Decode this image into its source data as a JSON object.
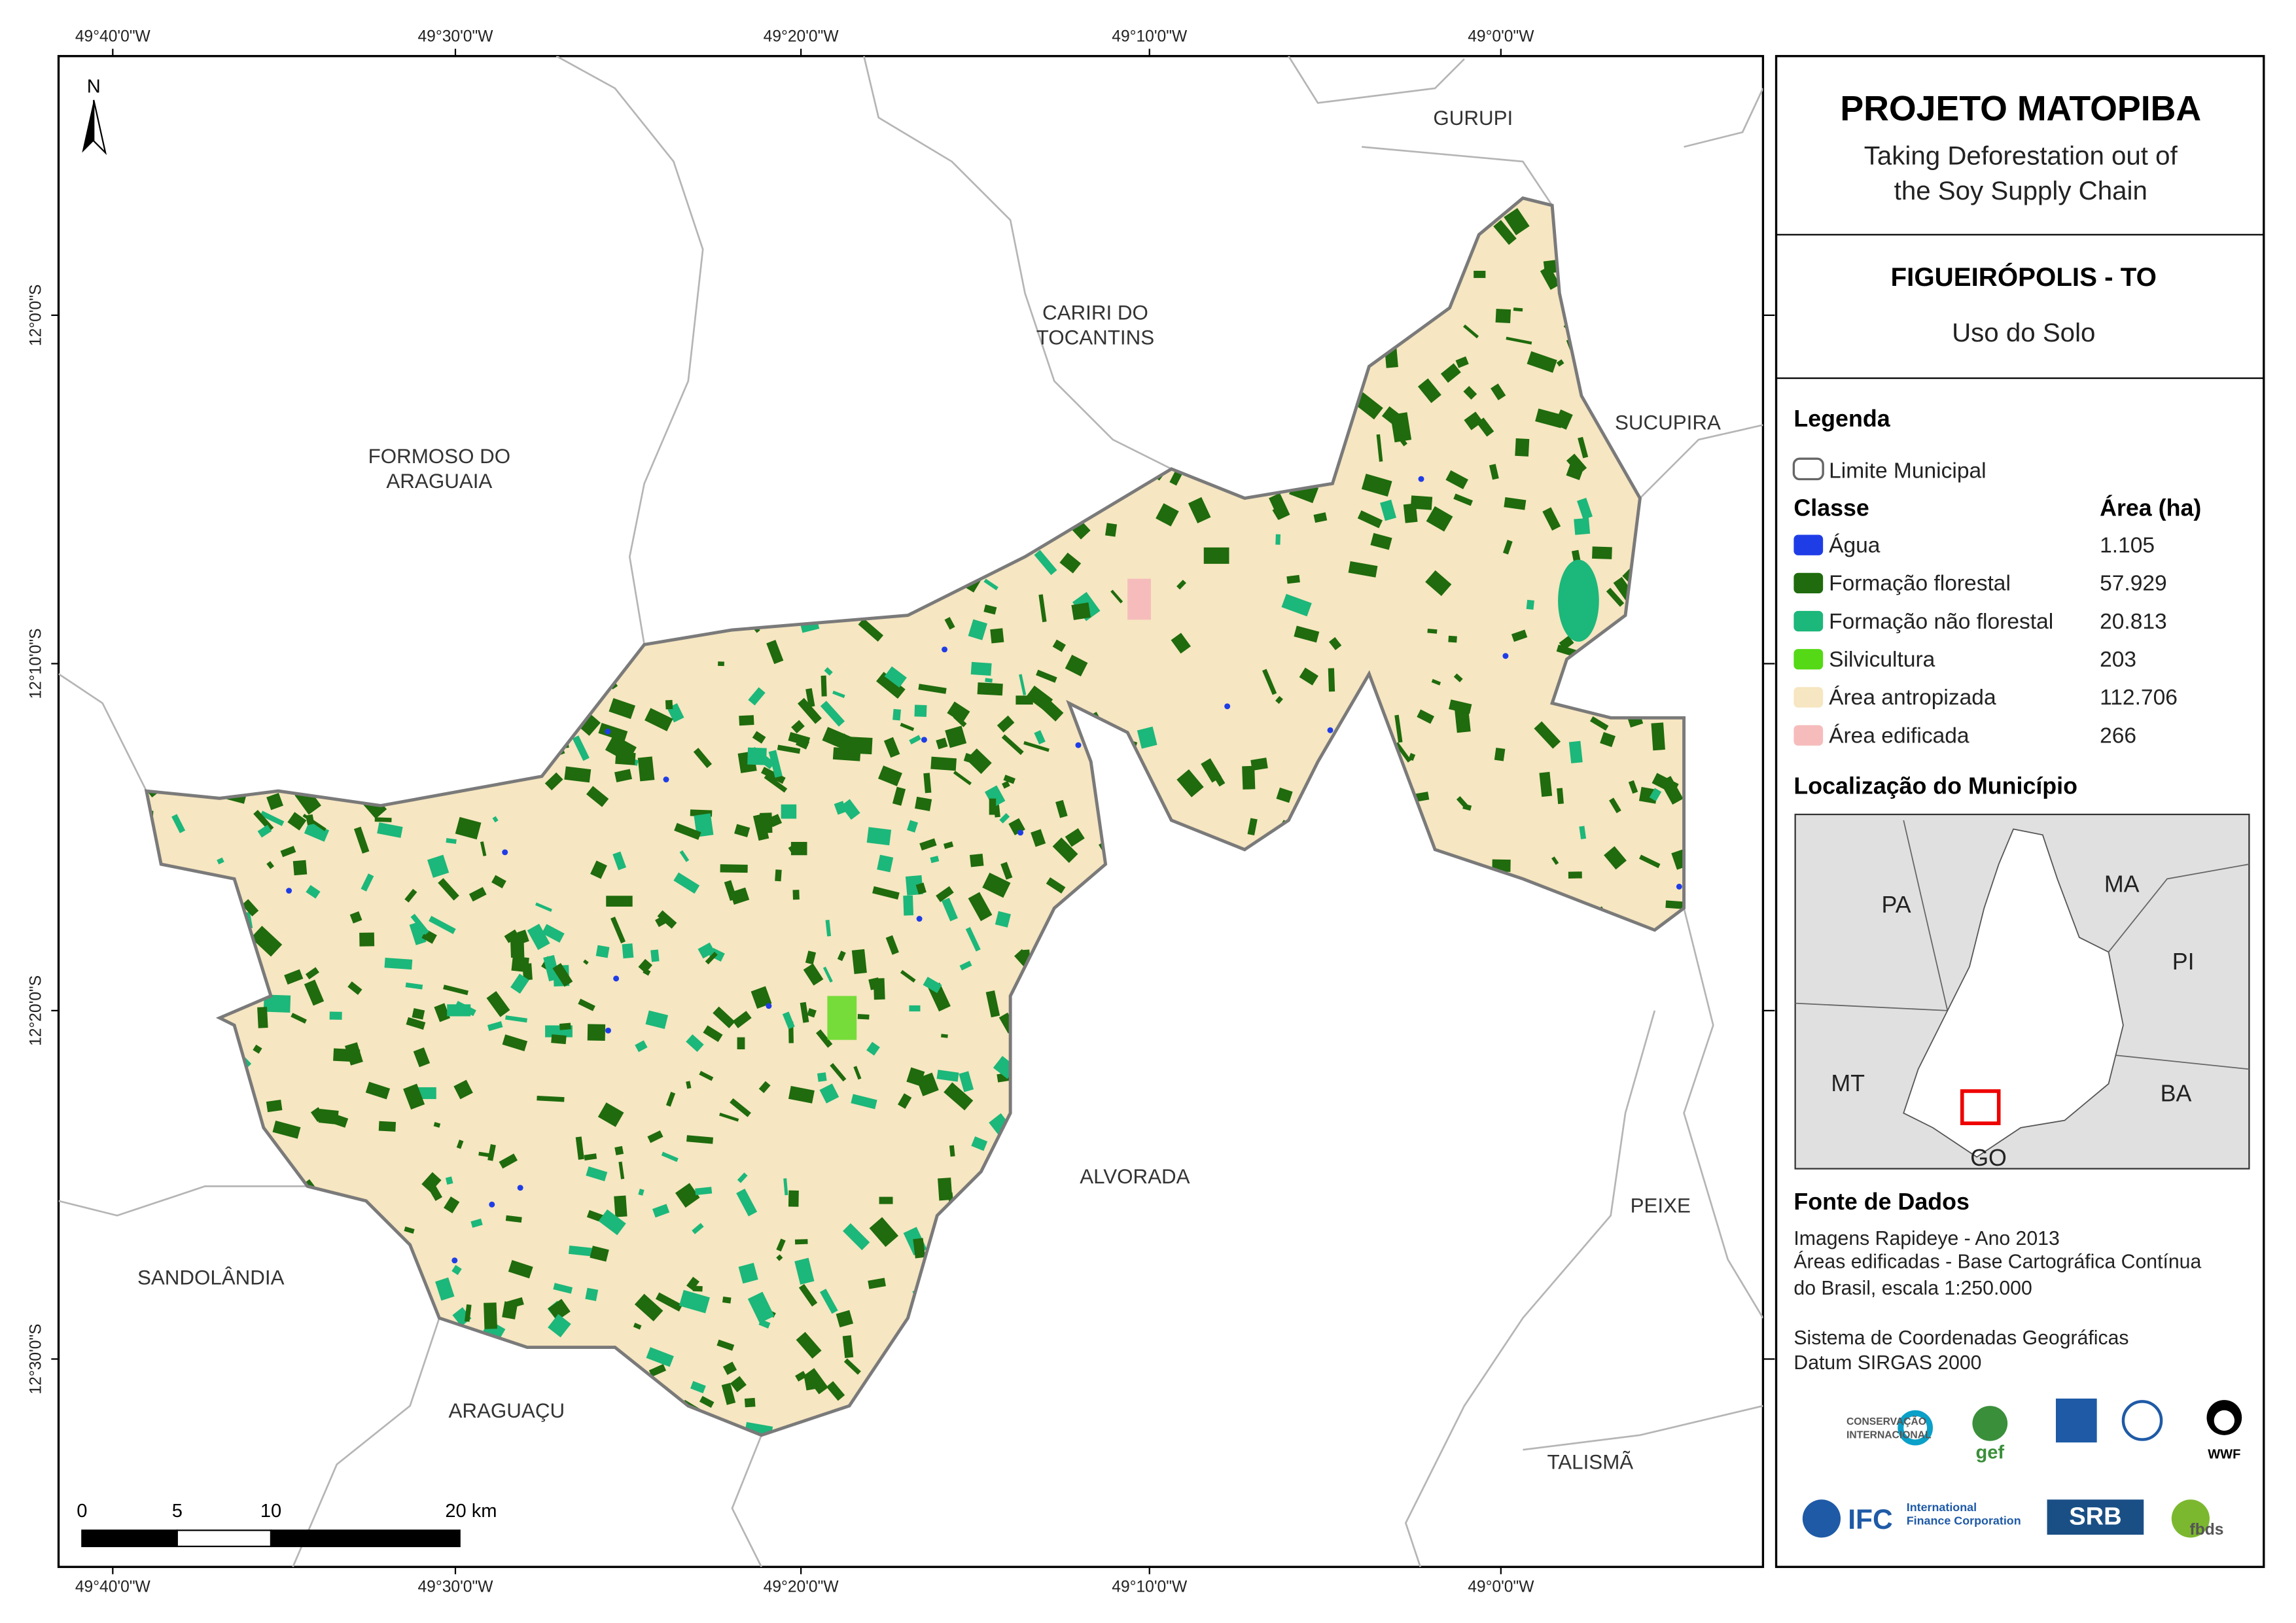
{
  "header": {
    "title": "PROJETO MATOPIBA",
    "subtitle_lines": [
      "Taking Deforestation out of",
      "the Soy Supply Chain"
    ]
  },
  "map_info": {
    "municipality": "FIGUEIRÓPOLIS - TO",
    "theme": "Uso do Solo"
  },
  "legend": {
    "title": "Legenda",
    "boundary": "Limite Municipal",
    "class_header": "Classe",
    "area_header": "Área (ha)",
    "classes": [
      {
        "name": "Água",
        "area": "1.105",
        "color": "#1f3de6"
      },
      {
        "name": "Formação florestal",
        "area": "57.929",
        "color": "#1f6b0d"
      },
      {
        "name": "Formação não florestal",
        "area": "20.813",
        "color": "#1cb77a"
      },
      {
        "name": "Silvicultura",
        "area": "203",
        "color": "#55d916"
      },
      {
        "name": "Área antropizada",
        "area": "112.706",
        "color": "#f6e6c1"
      },
      {
        "name": "Área edificada",
        "area": "266",
        "color": "#f6bcbc"
      }
    ]
  },
  "location": {
    "title": "Localização do Município",
    "states": [
      "PA",
      "MA",
      "PI",
      "MT",
      "BA",
      "GO"
    ]
  },
  "sources": {
    "title": "Fonte de Dados",
    "lines": [
      "Imagens Rapideye - Ano 2013",
      "Áreas edificadas - Base Cartográfica Contínua",
      "do Brasil, escala 1:250.000",
      "Sistema de Coordenadas Geográficas",
      "Datum SIRGAS 2000"
    ]
  },
  "logos": [
    "CONSERVAÇÃO",
    "INTERNACIONAL",
    "gef",
    "IFC",
    "International",
    "Finance Corporation",
    "SRB",
    "fbds",
    "WWF"
  ],
  "coordinates": {
    "longitudes": [
      "49°40'0\"W",
      "49°30'0\"W",
      "49°20'0\"W",
      "49°10'0\"W",
      "49°0'0\"W"
    ],
    "latitudes": [
      "12°0'0\"S",
      "12°10'0\"S",
      "12°20'0\"S",
      "12°30'0\"S"
    ]
  },
  "places": [
    {
      "lines": [
        "GURUPI"
      ]
    },
    {
      "lines": [
        "CARIRI DO",
        "TOCANTINS"
      ]
    },
    {
      "lines": [
        "SUCUPIRA"
      ]
    },
    {
      "lines": [
        "FORMOSO DO",
        "ARAGUAIA"
      ]
    },
    {
      "lines": [
        "ALVORADA"
      ]
    },
    {
      "lines": [
        "PEIXE"
      ]
    },
    {
      "lines": [
        "SANDOLÂNDIA"
      ]
    },
    {
      "lines": [
        "ARAGUAÇU"
      ]
    },
    {
      "lines": [
        "TALISMÃ"
      ]
    }
  ],
  "scale": {
    "labels": [
      "0",
      "5",
      "10",
      "20 km"
    ]
  },
  "north": "N"
}
